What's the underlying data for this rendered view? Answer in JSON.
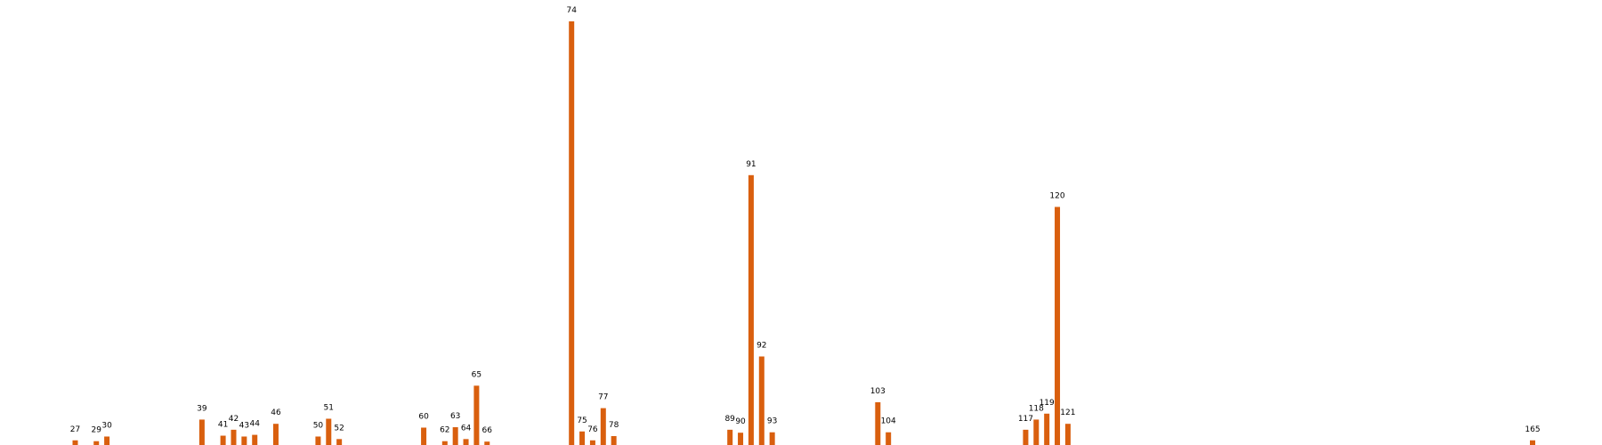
{
  "chart_data": {
    "type": "bar",
    "title": "",
    "xlabel": "",
    "ylabel": "",
    "grid": false,
    "legend": "none",
    "bar_color": "#d95f0e",
    "label_color": "#000000",
    "x_range": [
      20,
      170
    ],
    "ylim": [
      0,
      1
    ],
    "points": [
      {
        "x": 27,
        "label": "27",
        "value": 0.011
      },
      {
        "x": 29,
        "label": "29",
        "value": 0.009
      },
      {
        "x": 30,
        "label": "30",
        "value": 0.02
      },
      {
        "x": 39,
        "label": "39",
        "value": 0.06
      },
      {
        "x": 41,
        "label": "41",
        "value": 0.022
      },
      {
        "x": 42,
        "label": "42",
        "value": 0.036
      },
      {
        "x": 43,
        "label": "43",
        "value": 0.02
      },
      {
        "x": 44,
        "label": "44",
        "value": 0.024
      },
      {
        "x": 46,
        "label": "46",
        "value": 0.05
      },
      {
        "x": 50,
        "label": "50",
        "value": 0.02
      },
      {
        "x": 51,
        "label": "51",
        "value": 0.062
      },
      {
        "x": 52,
        "label": "52",
        "value": 0.014
      },
      {
        "x": 60,
        "label": "60",
        "value": 0.041
      },
      {
        "x": 62,
        "label": "62",
        "value": 0.009
      },
      {
        "x": 63,
        "label": "63",
        "value": 0.042
      },
      {
        "x": 64,
        "label": "64",
        "value": 0.014
      },
      {
        "x": 65,
        "label": "65",
        "value": 0.14
      },
      {
        "x": 66,
        "label": "66",
        "value": 0.008
      },
      {
        "x": 74,
        "label": "74",
        "value": 1.0
      },
      {
        "x": 75,
        "label": "75",
        "value": 0.032
      },
      {
        "x": 76,
        "label": "76",
        "value": 0.011
      },
      {
        "x": 77,
        "label": "77",
        "value": 0.087
      },
      {
        "x": 78,
        "label": "78",
        "value": 0.021
      },
      {
        "x": 89,
        "label": "89",
        "value": 0.036
      },
      {
        "x": 90,
        "label": "90",
        "value": 0.029
      },
      {
        "x": 91,
        "label": "91",
        "value": 0.637
      },
      {
        "x": 92,
        "label": "92",
        "value": 0.209
      },
      {
        "x": 93,
        "label": "93",
        "value": 0.03
      },
      {
        "x": 103,
        "label": "103",
        "value": 0.101
      },
      {
        "x": 104,
        "label": "104",
        "value": 0.03
      },
      {
        "x": 117,
        "label": "117",
        "value": 0.036
      },
      {
        "x": 118,
        "label": "118",
        "value": 0.06
      },
      {
        "x": 119,
        "label": "119",
        "value": 0.074
      },
      {
        "x": 120,
        "label": "120",
        "value": 0.562
      },
      {
        "x": 121,
        "label": "121",
        "value": 0.05
      },
      {
        "x": 165,
        "label": "165",
        "value": 0.011
      }
    ]
  }
}
